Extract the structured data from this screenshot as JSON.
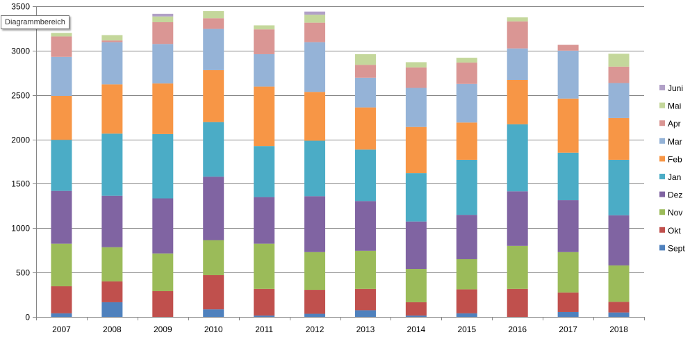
{
  "tooltip": "Diagrammbereich",
  "chart_data": {
    "type": "bar",
    "stacked": true,
    "categories": [
      "2007",
      "2008",
      "2009",
      "2010",
      "2011",
      "2012",
      "2013",
      "2014",
      "2015",
      "2016",
      "2017",
      "2018"
    ],
    "ylim": [
      0,
      3500
    ],
    "yticks": [
      0,
      500,
      1000,
      1500,
      2000,
      2500,
      3000,
      3500
    ],
    "grid": true,
    "legend_position": "right",
    "series": [
      {
        "name": "Sept",
        "color": "#4f81bd",
        "values": [
          40,
          165,
          0,
          85,
          15,
          35,
          75,
          15,
          40,
          0,
          55,
          50
        ]
      },
      {
        "name": "Okt",
        "color": "#c0504d",
        "values": [
          305,
          235,
          290,
          385,
          300,
          270,
          240,
          150,
          270,
          315,
          220,
          120
        ]
      },
      {
        "name": "Nov",
        "color": "#9bbb59",
        "values": [
          480,
          385,
          425,
          395,
          510,
          425,
          430,
          375,
          340,
          485,
          455,
          410
        ]
      },
      {
        "name": "Dez",
        "color": "#8064a2",
        "values": [
          595,
          580,
          620,
          715,
          525,
          630,
          560,
          535,
          500,
          615,
          585,
          565
        ]
      },
      {
        "name": "Jan",
        "color": "#4bacc6",
        "values": [
          575,
          700,
          725,
          615,
          575,
          625,
          580,
          545,
          620,
          755,
          535,
          625
        ]
      },
      {
        "name": "Feb",
        "color": "#f79646",
        "values": [
          495,
          555,
          570,
          585,
          670,
          550,
          475,
          520,
          420,
          500,
          610,
          470
        ]
      },
      {
        "name": "Mar",
        "color": "#95b3d7",
        "values": [
          440,
          475,
          445,
          465,
          365,
          560,
          335,
          440,
          435,
          355,
          540,
          395
        ]
      },
      {
        "name": "Apr",
        "color": "#da9694",
        "values": [
          230,
          20,
          245,
          120,
          280,
          220,
          145,
          230,
          240,
          305,
          65,
          185
        ]
      },
      {
        "name": "Mai",
        "color": "#c4d79b",
        "values": [
          40,
          60,
          65,
          80,
          45,
          90,
          120,
          60,
          55,
          45,
          0,
          145
        ]
      },
      {
        "name": "Juni",
        "color": "#b1a0c7",
        "values": [
          0,
          0,
          30,
          0,
          0,
          35,
          0,
          0,
          0,
          0,
          0,
          0
        ]
      }
    ]
  }
}
